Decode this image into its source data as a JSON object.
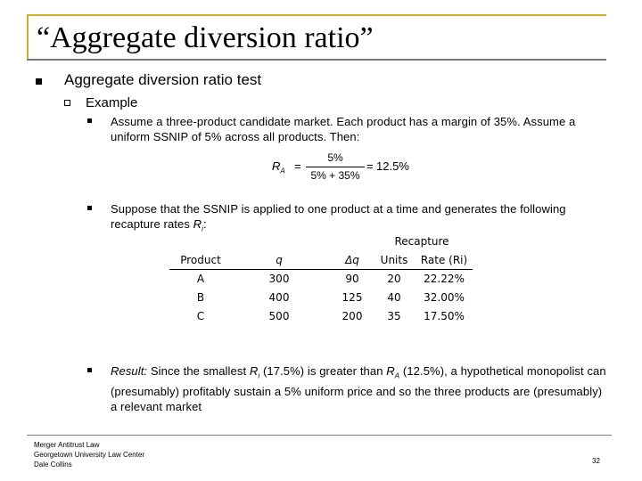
{
  "slide": {
    "title": "“Aggregate diversion ratio”",
    "heading": "Aggregate diversion ratio test",
    "subheading": "Example",
    "bullet1": "Assume a three-product candidate market. Each product has a margin of 35%. Assume a uniform SSNIP of 5% across all products. Then:",
    "formula": {
      "lhs": "R",
      "lhs_sub": "A",
      "equals": "=",
      "numerator": "5%",
      "denominator": "5% + 35%",
      "result": "12.5%"
    },
    "bullet2_text": "Suppose that the SSNIP is applied to one product at a time and generates the following recapture rates ",
    "bullet2_var": "R",
    "bullet2_sub": "i",
    "bullet2_end": ":",
    "result": {
      "label": "Result:",
      "text1": " Since the smallest ",
      "var": "R",
      "var_sub": "i",
      "text2": " (17.5%) is greater than ",
      "var2": "R",
      "var2_sub": "A",
      "text3": " (12.5%), a hypothetical monopolist can (presumably) profitably sustain a 5% uniform price and so the three products are (presumably) a relevant market"
    }
  },
  "table": {
    "recapture_header": "Recapture",
    "columns": [
      "Product",
      "q",
      "Δq",
      "Units",
      "Rate (Ri)"
    ],
    "rows": [
      [
        "A",
        "300",
        "90",
        "20",
        "22.22%"
      ],
      [
        "B",
        "400",
        "125",
        "40",
        "32.00%"
      ],
      [
        "C",
        "500",
        "200",
        "35",
        "17.50%"
      ]
    ]
  },
  "footer": {
    "line1": "Merger Antitrust Law",
    "line2": "Georgetown University Law Center",
    "line3": "Dale Collins",
    "page": "32"
  }
}
